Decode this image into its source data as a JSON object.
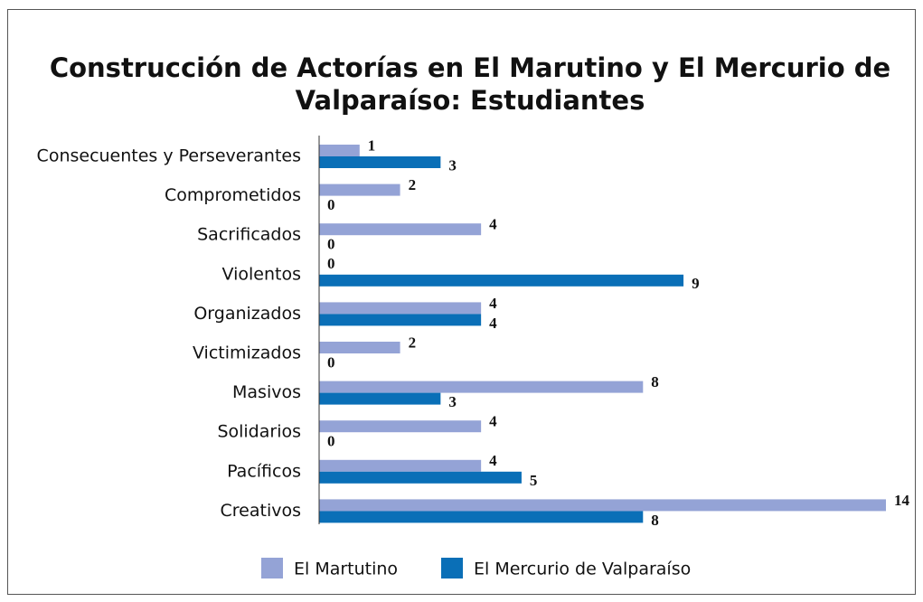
{
  "chart_data": {
    "type": "hbar",
    "title": [
      "Construcción de Actorías en El Marutino y El Mercurio de",
      "Valparaíso: Estudiantes"
    ],
    "categories": [
      "Consecuentes y Perseverantes",
      "Comprometidos",
      "Sacrificados",
      "Violentos",
      "Organizados",
      "Victimizados",
      "Masivos",
      "Solidarios",
      "Pacíficos",
      "Creativos"
    ],
    "series": [
      {
        "name": "El Martutino",
        "color": "#94a3d6",
        "values": [
          1,
          2,
          4,
          0,
          4,
          2,
          8,
          4,
          4,
          14
        ]
      },
      {
        "name": "El Mercurio de Valparaíso",
        "color": "#0a6fb7",
        "values": [
          3,
          0,
          0,
          9,
          4,
          0,
          3,
          0,
          5,
          8
        ]
      }
    ],
    "xlim": [
      0,
      14
    ],
    "legend": "bottom"
  }
}
